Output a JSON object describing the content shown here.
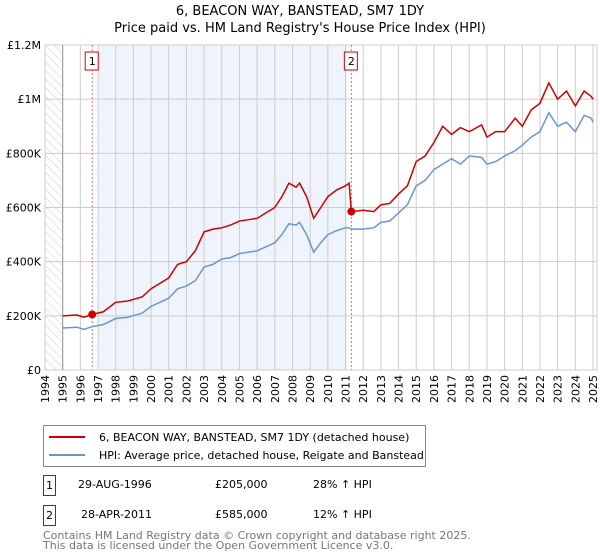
{
  "title_line1": "6, BEACON WAY, BANSTEAD, SM7 1DY",
  "title_line2": "Price paid vs. HM Land Registry's House Price Index (HPI)",
  "colors": {
    "property": "#cc0000",
    "hpi": "#6a96d0",
    "band": "#eef3fc"
  },
  "chart_data": {
    "type": "line",
    "title": "Price paid vs. HM Land Registry's House Price Index (HPI)",
    "xlim": [
      1994,
      2025
    ],
    "ylim": [
      0,
      1200000
    ],
    "x_ticks": [
      "1994",
      "1995",
      "1996",
      "1997",
      "1998",
      "1999",
      "2000",
      "2001",
      "2002",
      "2003",
      "2004",
      "2005",
      "2006",
      "2007",
      "2008",
      "2009",
      "2010",
      "2011",
      "2012",
      "2013",
      "2014",
      "2015",
      "2016",
      "2017",
      "2018",
      "2019",
      "2020",
      "2021",
      "2022",
      "2023",
      "2024",
      "2025"
    ],
    "y_ticks": [
      {
        "v": 0,
        "label": "£0"
      },
      {
        "v": 200000,
        "label": "£200K"
      },
      {
        "v": 400000,
        "label": "£400K"
      },
      {
        "v": 600000,
        "label": "£600K"
      },
      {
        "v": 800000,
        "label": "£800K"
      },
      {
        "v": 1000000,
        "label": "£1M"
      },
      {
        "v": 1200000,
        "label": "£1.2M"
      }
    ],
    "grid": true,
    "highlight_range": [
      1997,
      2011.1
    ],
    "series": [
      {
        "name": "6, BEACON WAY, BANSTEAD, SM7 1DY (detached house)",
        "color": "#cc0000",
        "x": [
          1995,
          1995.8,
          1996.2,
          1996.67,
          1997.3,
          1998,
          1998.7,
          1999.5,
          2000,
          2000.5,
          2001,
          2001.5,
          2002,
          2002.5,
          2003,
          2003.5,
          2004,
          2004.5,
          2005,
          2005.5,
          2006,
          2006.5,
          2007,
          2007.4,
          2007.8,
          2008.2,
          2008.4,
          2008.8,
          2009.2,
          2009.6,
          2010,
          2010.5,
          2011,
          2011.2,
          2011.33,
          2012,
          2012.6,
          2013,
          2013.5,
          2014,
          2014.5,
          2015,
          2015.5,
          2016,
          2016.5,
          2017,
          2017.5,
          2018,
          2018.7,
          2019,
          2019.5,
          2020,
          2020.6,
          2021,
          2021.5,
          2022,
          2022.5,
          2023,
          2023.5,
          2024,
          2024.5,
          2024.9,
          2025
        ],
        "y": [
          200000,
          203000,
          195000,
          205000,
          215000,
          250000,
          255000,
          270000,
          300000,
          320000,
          340000,
          390000,
          400000,
          440000,
          510000,
          520000,
          525000,
          535000,
          550000,
          555000,
          560000,
          580000,
          600000,
          640000,
          690000,
          675000,
          690000,
          640000,
          560000,
          600000,
          640000,
          665000,
          680000,
          690000,
          585000,
          590000,
          585000,
          610000,
          615000,
          650000,
          680000,
          770000,
          790000,
          840000,
          900000,
          870000,
          895000,
          880000,
          905000,
          860000,
          880000,
          880000,
          930000,
          900000,
          960000,
          985000,
          1060000,
          1000000,
          1030000,
          975000,
          1030000,
          1010000,
          1000000
        ]
      },
      {
        "name": "HPI: Average price, detached house, Reigate and Banstead",
        "color": "#6a96d0",
        "x": [
          1995,
          1995.8,
          1996.2,
          1996.67,
          1997.3,
          1998,
          1998.7,
          1999.5,
          2000,
          2000.5,
          2001,
          2001.5,
          2002,
          2002.5,
          2003,
          2003.5,
          2004,
          2004.5,
          2005,
          2005.5,
          2006,
          2006.5,
          2007,
          2007.4,
          2007.8,
          2008.2,
          2008.4,
          2008.8,
          2009.2,
          2009.6,
          2010,
          2010.5,
          2011,
          2011.2,
          2011.33,
          2012,
          2012.6,
          2013,
          2013.5,
          2014,
          2014.5,
          2015,
          2015.5,
          2016,
          2016.5,
          2017,
          2017.5,
          2018,
          2018.7,
          2019,
          2019.5,
          2020,
          2020.6,
          2021,
          2021.5,
          2022,
          2022.5,
          2023,
          2023.5,
          2024,
          2024.5,
          2024.9,
          2025
        ],
        "y": [
          155000,
          158000,
          150000,
          160000,
          168000,
          190000,
          195000,
          210000,
          235000,
          250000,
          265000,
          300000,
          310000,
          330000,
          380000,
          390000,
          410000,
          415000,
          430000,
          435000,
          440000,
          455000,
          470000,
          500000,
          540000,
          535000,
          545000,
          500000,
          435000,
          470000,
          500000,
          515000,
          525000,
          525000,
          520000,
          520000,
          525000,
          545000,
          550000,
          580000,
          610000,
          680000,
          700000,
          740000,
          760000,
          780000,
          760000,
          790000,
          785000,
          760000,
          770000,
          790000,
          810000,
          830000,
          860000,
          880000,
          950000,
          900000,
          915000,
          880000,
          940000,
          930000,
          915000
        ]
      }
    ],
    "annotations": [
      {
        "label": "1",
        "x": 1996.67,
        "y": 205000
      },
      {
        "label": "2",
        "x": 2011.33,
        "y": 585000
      }
    ]
  },
  "legend": {
    "property": "6, BEACON WAY, BANSTEAD, SM7 1DY (detached house)",
    "hpi": "HPI: Average price, detached house, Reigate and Banstead"
  },
  "transactions": [
    {
      "num": "1",
      "date": "29-AUG-1996",
      "price": "£205,000",
      "hpi": "28% ↑ HPI"
    },
    {
      "num": "2",
      "date": "28-APR-2011",
      "price": "£585,000",
      "hpi": "12% ↑ HPI"
    }
  ],
  "footer": {
    "line1": "Contains HM Land Registry data © Crown copyright and database right 2025.",
    "line2": "This data is licensed under the Open Government Licence v3.0."
  }
}
